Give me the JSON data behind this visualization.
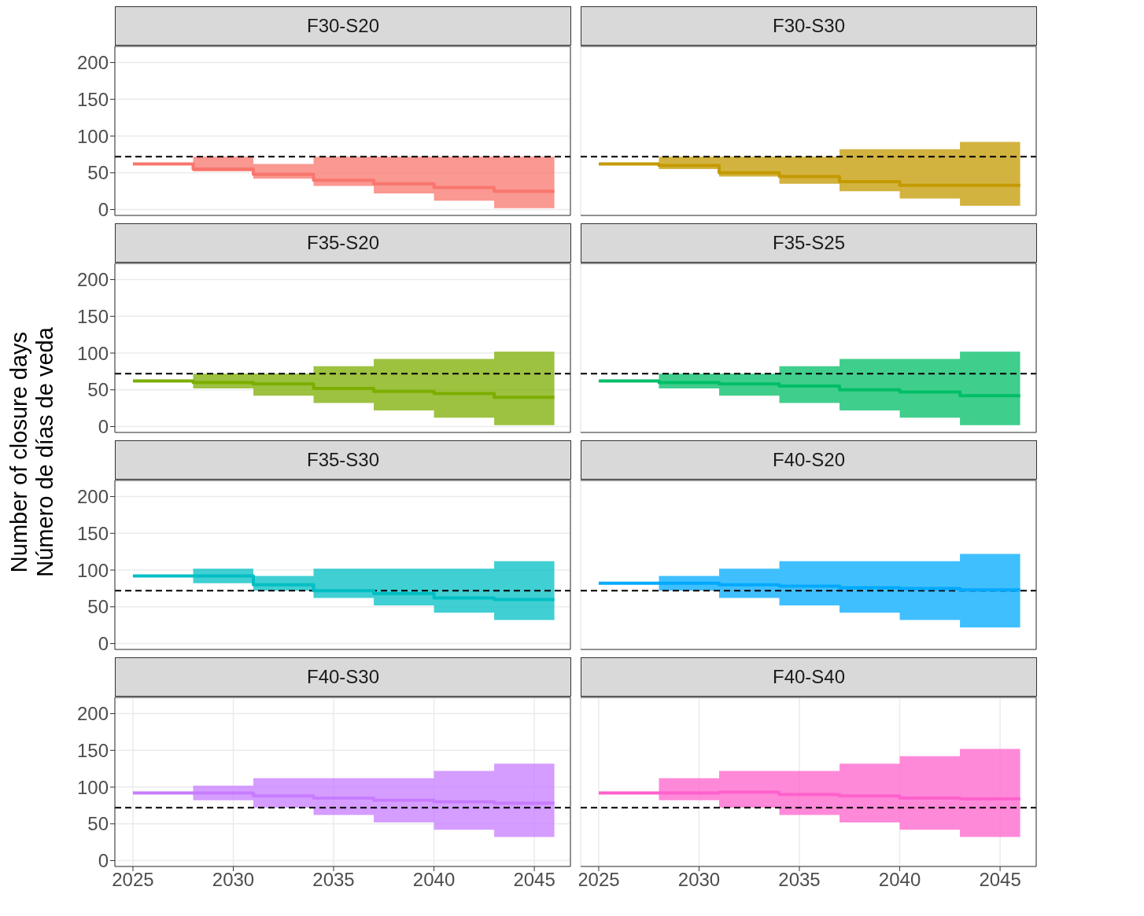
{
  "chart_data": [
    {
      "type": "step",
      "title": "F30-S20",
      "ylabel": "Number of closure days\nNúmero de días de veda",
      "x": [
        2025,
        2028,
        2031,
        2034,
        2037,
        2040,
        2043,
        2046
      ],
      "series": [
        {
          "color": "#f8766d",
          "values": [
            62,
            55,
            48,
            40,
            35,
            30,
            25,
            25
          ],
          "lower": [
            62,
            52,
            42,
            32,
            22,
            12,
            2,
            2
          ],
          "upper": [
            62,
            72,
            62,
            72,
            72,
            72,
            72,
            72
          ]
        }
      ],
      "xlim": [
        2024.1,
        2046.8
      ],
      "xticks": [
        2025,
        2030,
        2035,
        2040,
        2045
      ],
      "ylim": [
        -8,
        222
      ],
      "yticks": [
        0,
        50,
        100,
        150,
        200
      ],
      "grid": true,
      "tick_labels": "y",
      "ref_lines": [
        {
          "axis": "y",
          "value": 72,
          "color": "#000000",
          "line_style": "dashed"
        }
      ]
    },
    {
      "type": "step",
      "title": "F30-S30",
      "x": [
        2025,
        2028,
        2031,
        2034,
        2037,
        2040,
        2043,
        2046
      ],
      "series": [
        {
          "color": "#c49a00",
          "values": [
            62,
            60,
            50,
            45,
            38,
            33,
            33,
            33
          ],
          "lower": [
            62,
            55,
            45,
            35,
            25,
            15,
            5,
            5
          ],
          "upper": [
            62,
            72,
            72,
            72,
            82,
            82,
            92,
            92
          ]
        }
      ],
      "xlim": [
        2024.1,
        2046.8
      ],
      "xticks": [
        2025,
        2030,
        2035,
        2040,
        2045
      ],
      "ylim": [
        -8,
        222
      ],
      "yticks": [
        0,
        50,
        100,
        150,
        200
      ],
      "grid": true,
      "tick_labels": false,
      "ref_lines": [
        {
          "axis": "y",
          "value": 72,
          "color": "#000000",
          "line_style": "dashed"
        }
      ]
    },
    {
      "type": "step",
      "title": "F35-S20",
      "x": [
        2025,
        2028,
        2031,
        2034,
        2037,
        2040,
        2043,
        2046
      ],
      "series": [
        {
          "color": "#7cae00",
          "values": [
            62,
            60,
            58,
            52,
            48,
            45,
            40,
            40
          ],
          "lower": [
            62,
            52,
            42,
            32,
            22,
            12,
            2,
            2
          ],
          "upper": [
            62,
            72,
            72,
            82,
            92,
            92,
            102,
            102
          ]
        }
      ],
      "xlim": [
        2024.1,
        2046.8
      ],
      "xticks": [
        2025,
        2030,
        2035,
        2040,
        2045
      ],
      "ylim": [
        -8,
        222
      ],
      "yticks": [
        0,
        50,
        100,
        150,
        200
      ],
      "grid": true,
      "tick_labels": "y",
      "ref_lines": [
        {
          "axis": "y",
          "value": 72,
          "color": "#000000",
          "line_style": "dashed"
        }
      ]
    },
    {
      "type": "step",
      "title": "F35-S25",
      "x": [
        2025,
        2028,
        2031,
        2034,
        2037,
        2040,
        2043,
        2046
      ],
      "series": [
        {
          "color": "#00be67",
          "values": [
            62,
            60,
            58,
            55,
            50,
            47,
            42,
            42
          ],
          "lower": [
            62,
            52,
            42,
            32,
            22,
            12,
            2,
            2
          ],
          "upper": [
            62,
            72,
            72,
            82,
            92,
            92,
            102,
            102
          ]
        }
      ],
      "xlim": [
        2024.1,
        2046.8
      ],
      "xticks": [
        2025,
        2030,
        2035,
        2040,
        2045
      ],
      "ylim": [
        -8,
        222
      ],
      "yticks": [
        0,
        50,
        100,
        150,
        200
      ],
      "grid": true,
      "tick_labels": false,
      "ref_lines": [
        {
          "axis": "y",
          "value": 72,
          "color": "#000000",
          "line_style": "dashed"
        }
      ]
    },
    {
      "type": "step",
      "title": "F35-S30",
      "x": [
        2025,
        2028,
        2031,
        2034,
        2037,
        2040,
        2043,
        2046
      ],
      "series": [
        {
          "color": "#00bfc4",
          "values": [
            92,
            92,
            80,
            72,
            68,
            62,
            60,
            60
          ],
          "lower": [
            92,
            82,
            72,
            62,
            52,
            42,
            32,
            32
          ],
          "upper": [
            92,
            102,
            92,
            102,
            102,
            102,
            112,
            112
          ]
        }
      ],
      "xlim": [
        2024.1,
        2046.8
      ],
      "xticks": [
        2025,
        2030,
        2035,
        2040,
        2045
      ],
      "ylim": [
        -8,
        222
      ],
      "yticks": [
        0,
        50,
        100,
        150,
        200
      ],
      "grid": true,
      "tick_labels": "y",
      "ref_lines": [
        {
          "axis": "y",
          "value": 72,
          "color": "#000000",
          "line_style": "dashed"
        }
      ]
    },
    {
      "type": "step",
      "title": "F40-S20",
      "x": [
        2025,
        2028,
        2031,
        2034,
        2037,
        2040,
        2043,
        2046
      ],
      "series": [
        {
          "color": "#00a9ff",
          "values": [
            82,
            82,
            80,
            78,
            76,
            75,
            73,
            73
          ],
          "lower": [
            82,
            72,
            62,
            52,
            42,
            32,
            22,
            22
          ],
          "upper": [
            82,
            92,
            102,
            112,
            112,
            112,
            122,
            122
          ]
        }
      ],
      "xlim": [
        2024.1,
        2046.8
      ],
      "xticks": [
        2025,
        2030,
        2035,
        2040,
        2045
      ],
      "ylim": [
        -8,
        222
      ],
      "yticks": [
        0,
        50,
        100,
        150,
        200
      ],
      "grid": true,
      "tick_labels": false,
      "ref_lines": [
        {
          "axis": "y",
          "value": 72,
          "color": "#000000",
          "line_style": "dashed"
        }
      ]
    },
    {
      "type": "step",
      "title": "F40-S30",
      "x": [
        2025,
        2028,
        2031,
        2034,
        2037,
        2040,
        2043,
        2046
      ],
      "series": [
        {
          "color": "#c77cff",
          "values": [
            92,
            92,
            88,
            85,
            82,
            80,
            78,
            78
          ],
          "lower": [
            92,
            82,
            72,
            62,
            52,
            42,
            32,
            32
          ],
          "upper": [
            92,
            102,
            112,
            112,
            112,
            122,
            132,
            132
          ]
        }
      ],
      "xlim": [
        2024.1,
        2046.8
      ],
      "xticks": [
        2025,
        2030,
        2035,
        2040,
        2045
      ],
      "ylim": [
        -8,
        222
      ],
      "yticks": [
        0,
        50,
        100,
        150,
        200
      ],
      "grid": true,
      "ref_lines": [
        {
          "axis": "y",
          "value": 72,
          "color": "#000000",
          "line_style": "dashed"
        }
      ]
    },
    {
      "type": "step",
      "title": "F40-S40",
      "x": [
        2025,
        2028,
        2031,
        2034,
        2037,
        2040,
        2043,
        2046
      ],
      "series": [
        {
          "color": "#ff61cc",
          "values": [
            92,
            92,
            93,
            90,
            88,
            85,
            84,
            84
          ],
          "lower": [
            92,
            82,
            72,
            62,
            52,
            42,
            32,
            32
          ],
          "upper": [
            92,
            112,
            122,
            122,
            132,
            142,
            152,
            152
          ]
        }
      ],
      "xlim": [
        2024.1,
        2046.8
      ],
      "xticks": [
        2025,
        2030,
        2035,
        2040,
        2045
      ],
      "ylim": [
        -8,
        222
      ],
      "yticks": [
        0,
        50,
        100,
        150,
        200
      ],
      "grid": true,
      "tick_labels": "x",
      "ref_lines": [
        {
          "axis": "y",
          "value": 72,
          "color": "#000000",
          "line_style": "dashed"
        }
      ]
    }
  ]
}
